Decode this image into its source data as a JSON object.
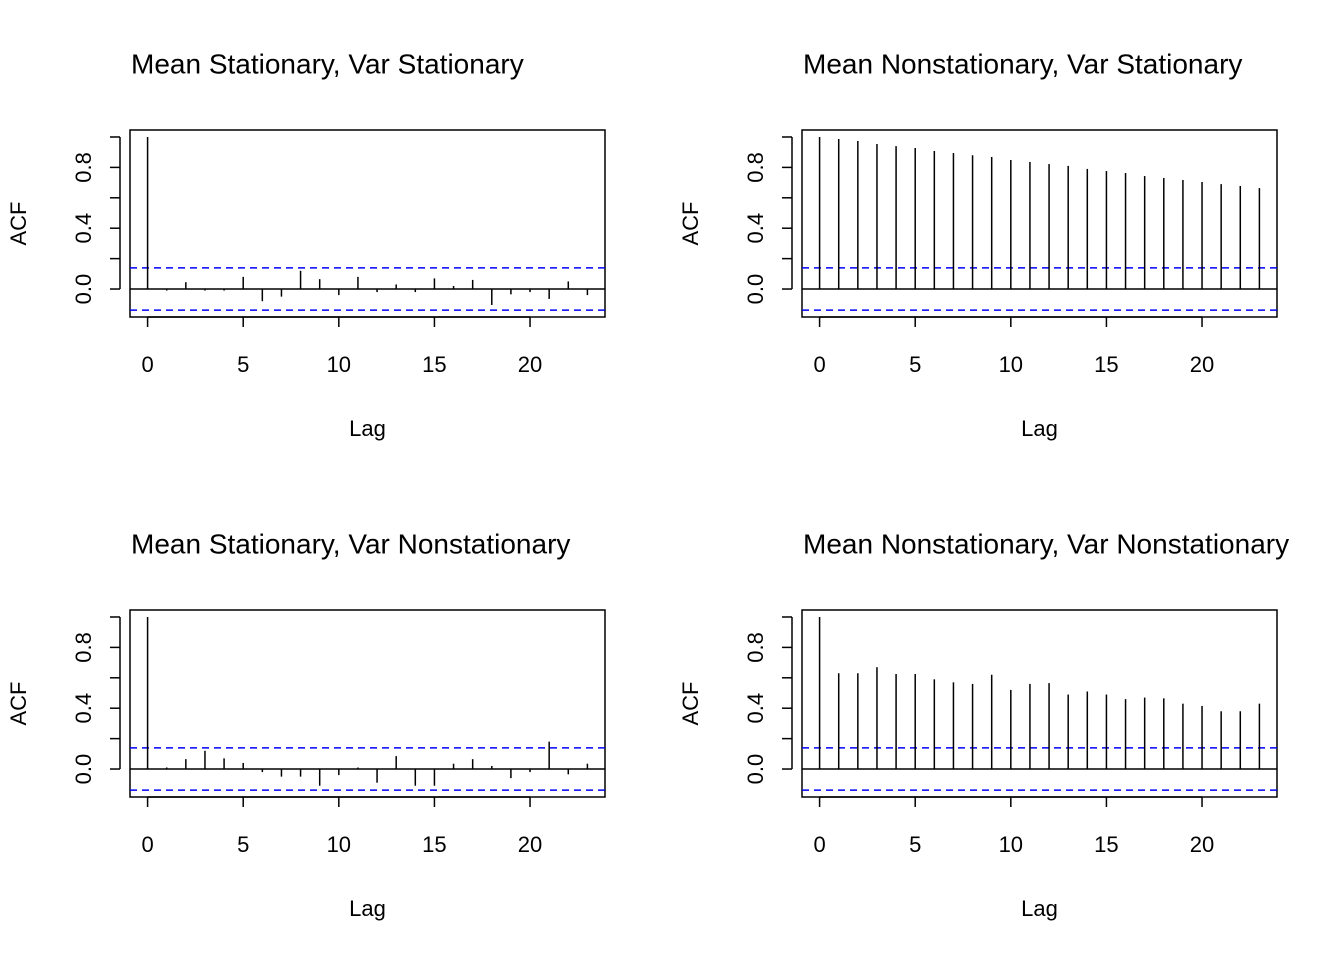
{
  "chart_data": [
    {
      "type": "stem",
      "title": "Mean Stationary, Var Stationary",
      "x_label": "Lag",
      "y_label": "ACF",
      "x": [
        0,
        1,
        2,
        3,
        4,
        5,
        6,
        7,
        8,
        9,
        10,
        11,
        12,
        13,
        14,
        15,
        16,
        17,
        18,
        19,
        20,
        21,
        22,
        23
      ],
      "values": [
        1.0,
        -0.01,
        0.045,
        -0.01,
        -0.01,
        0.08,
        -0.08,
        -0.05,
        0.12,
        0.065,
        -0.04,
        0.08,
        -0.02,
        0.03,
        -0.02,
        0.07,
        0.02,
        0.06,
        -0.105,
        -0.035,
        -0.02,
        -0.065,
        0.05,
        -0.04
      ],
      "color": "#000000",
      "conf_limit": 0.139,
      "conf_color": "#0000ff",
      "xlim": [
        -0.92,
        23.92
      ],
      "ylim": [
        -0.184,
        1.046
      ],
      "xticks": [
        0,
        5,
        10,
        15,
        20
      ],
      "yticks": [
        {
          "value": 0,
          "label": "0.0"
        },
        0.4,
        0.8
      ],
      "yticks_unlabeled": [
        0.2,
        0.6,
        1.0
      ]
    },
    {
      "type": "stem",
      "title": "Mean Nonstationary, Var Stationary",
      "x_label": "Lag",
      "y_label": "ACF",
      "x": [
        0,
        1,
        2,
        3,
        4,
        5,
        6,
        7,
        8,
        9,
        10,
        11,
        12,
        13,
        14,
        15,
        16,
        17,
        18,
        19,
        20,
        21,
        22,
        23
      ],
      "values": [
        1.0,
        0.987,
        0.974,
        0.954,
        0.94,
        0.928,
        0.908,
        0.895,
        0.88,
        0.868,
        0.849,
        0.836,
        0.822,
        0.81,
        0.79,
        0.776,
        0.763,
        0.743,
        0.73,
        0.717,
        0.704,
        0.69,
        0.678,
        0.664
      ],
      "color": "#000000",
      "conf_limit": 0.139,
      "conf_color": "#0000ff",
      "xlim": [
        -0.92,
        23.92
      ],
      "ylim": [
        -0.184,
        1.046
      ],
      "xticks": [
        0,
        5,
        10,
        15,
        20
      ],
      "yticks": [
        {
          "value": 0,
          "label": "0.0"
        },
        0.4,
        0.8
      ],
      "yticks_unlabeled": [
        0.2,
        0.6,
        1.0
      ]
    },
    {
      "type": "stem",
      "title": "Mean Stationary, Var Nonstationary",
      "x_label": "Lag",
      "y_label": "ACF",
      "x": [
        0,
        1,
        2,
        3,
        4,
        5,
        6,
        7,
        8,
        9,
        10,
        11,
        12,
        13,
        14,
        15,
        16,
        17,
        18,
        19,
        20,
        21,
        22,
        23
      ],
      "values": [
        1.0,
        0.01,
        0.065,
        0.12,
        0.07,
        0.04,
        -0.02,
        -0.05,
        -0.05,
        -0.11,
        -0.04,
        0.01,
        -0.09,
        0.085,
        -0.11,
        -0.11,
        0.035,
        0.065,
        0.02,
        -0.06,
        -0.02,
        0.18,
        -0.035,
        0.035
      ],
      "color": "#000000",
      "conf_limit": 0.139,
      "conf_color": "#0000ff",
      "xlim": [
        -0.92,
        23.92
      ],
      "ylim": [
        -0.184,
        1.046
      ],
      "xticks": [
        0,
        5,
        10,
        15,
        20
      ],
      "yticks": [
        {
          "value": 0,
          "label": "0.0"
        },
        0.4,
        0.8
      ],
      "yticks_unlabeled": [
        0.2,
        0.6,
        1.0
      ]
    },
    {
      "type": "stem",
      "title": "Mean Nonstationary, Var Nonstationary",
      "x_label": "Lag",
      "y_label": "ACF",
      "x": [
        0,
        1,
        2,
        3,
        4,
        5,
        6,
        7,
        8,
        9,
        10,
        11,
        12,
        13,
        14,
        15,
        16,
        17,
        18,
        19,
        20,
        21,
        22,
        23
      ],
      "values": [
        1.0,
        0.63,
        0.63,
        0.67,
        0.625,
        0.625,
        0.59,
        0.57,
        0.56,
        0.62,
        0.52,
        0.56,
        0.565,
        0.49,
        0.51,
        0.49,
        0.46,
        0.47,
        0.465,
        0.43,
        0.415,
        0.38,
        0.38,
        0.43
      ],
      "color": "#000000",
      "conf_limit": 0.139,
      "conf_color": "#0000ff",
      "xlim": [
        -0.92,
        23.92
      ],
      "ylim": [
        -0.184,
        1.046
      ],
      "xticks": [
        0,
        5,
        10,
        15,
        20
      ],
      "yticks": [
        {
          "value": 0,
          "label": "0.0"
        },
        0.4,
        0.8
      ],
      "yticks_unlabeled": [
        0.2,
        0.6,
        1.0
      ]
    }
  ]
}
